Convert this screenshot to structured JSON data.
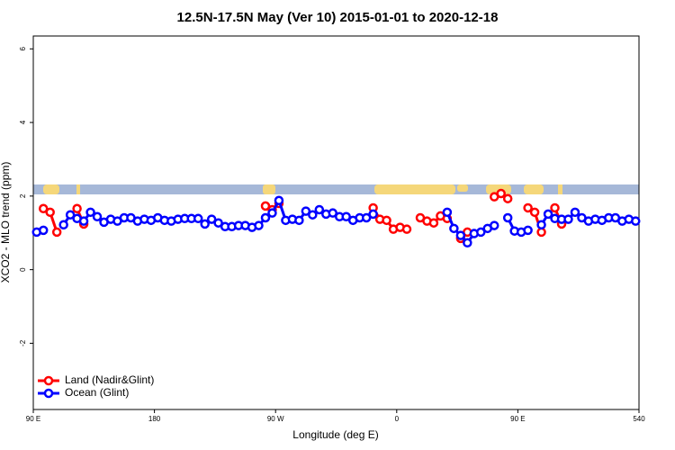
{
  "chart_data": {
    "type": "line",
    "title": "12.5N-17.5N May (Ver 10)   2015-01-01 to 2020-12-18",
    "xlabel": "Longitude (deg E)",
    "ylabel": "XCO2 - MLO trend (ppm)",
    "xlim": [
      90,
      540
    ],
    "xticks": [
      {
        "value": 90,
        "label": "90 E"
      },
      180,
      {
        "value": 270,
        "label": "90 W"
      },
      {
        "value": 360,
        "label": "0"
      },
      {
        "value": 450,
        "label": "90 E"
      },
      540
    ],
    "ylim": [
      -3.8,
      6.35
    ],
    "yticks": [
      -2,
      0,
      2,
      4,
      6
    ],
    "legend": "bottom-left",
    "x": [
      92.5,
      97.5,
      102.5,
      107.5,
      112.5,
      117.5,
      122.5,
      127.5,
      132.5,
      137.5,
      142.5,
      147.5,
      152.5,
      157.5,
      162.5,
      167.5,
      172.5,
      177.5,
      182.5,
      187.5,
      192.5,
      197.5,
      202.5,
      207.5,
      212.5,
      217.5,
      222.5,
      227.5,
      232.5,
      237.5,
      242.5,
      247.5,
      252.5,
      257.5,
      262.5,
      267.5,
      272.5,
      277.5,
      282.5,
      287.5,
      292.5,
      297.5,
      302.5,
      307.5,
      312.5,
      317.5,
      322.5,
      327.5,
      332.5,
      337.5,
      342.5,
      347.5,
      352.5,
      357.5,
      362.5,
      367.5,
      372.5,
      377.5,
      382.5,
      387.5,
      392.5,
      397.5,
      402.5,
      407.5,
      412.5,
      417.5,
      422.5,
      427.5,
      432.5,
      437.5,
      442.5,
      447.5,
      452.5,
      457.5,
      462.5,
      467.5,
      472.5,
      477.5,
      482.5,
      487.5,
      492.5,
      497.5,
      502.5,
      507.5,
      512.5,
      517.5,
      522.5,
      527.5,
      532.5,
      537.5
    ],
    "series": [
      {
        "name": "Land (Nadir&Glint)",
        "color": "#ff0000",
        "values": [
          null,
          1.66,
          1.56,
          1.02,
          null,
          null,
          1.66,
          1.24,
          null,
          null,
          null,
          null,
          null,
          null,
          null,
          null,
          null,
          null,
          null,
          null,
          null,
          null,
          null,
          null,
          null,
          null,
          null,
          null,
          null,
          null,
          null,
          null,
          null,
          null,
          1.73,
          1.63,
          1.8,
          null,
          null,
          null,
          null,
          null,
          null,
          null,
          null,
          null,
          null,
          null,
          null,
          null,
          1.68,
          1.37,
          1.34,
          1.1,
          1.15,
          1.1,
          null,
          1.41,
          1.32,
          1.27,
          1.46,
          1.39,
          null,
          0.85,
          1.02,
          null,
          null,
          null,
          1.98,
          2.07,
          1.93,
          null,
          null,
          1.68,
          1.56,
          1.02,
          null,
          1.68,
          1.24,
          null,
          null,
          null,
          null,
          null,
          null,
          null,
          null,
          null,
          null,
          null
        ]
      },
      {
        "name": "Ocean (Glint)",
        "color": "#0000ff",
        "values": [
          1.02,
          1.07,
          null,
          null,
          1.22,
          1.49,
          1.39,
          1.32,
          1.56,
          1.44,
          1.29,
          1.37,
          1.32,
          1.41,
          1.41,
          1.32,
          1.37,
          1.34,
          1.41,
          1.34,
          1.32,
          1.37,
          1.39,
          1.39,
          1.39,
          1.24,
          1.37,
          1.27,
          1.17,
          1.17,
          1.2,
          1.2,
          1.15,
          1.2,
          1.41,
          1.54,
          1.88,
          1.34,
          1.37,
          1.34,
          1.59,
          1.49,
          1.63,
          1.51,
          1.54,
          1.44,
          1.44,
          1.34,
          1.41,
          1.41,
          1.51,
          null,
          null,
          null,
          null,
          null,
          null,
          null,
          null,
          null,
          null,
          1.56,
          1.12,
          0.93,
          0.73,
          0.98,
          1.02,
          1.12,
          1.2,
          null,
          1.41,
          1.05,
          1.02,
          1.07,
          null,
          1.22,
          1.51,
          1.39,
          1.37,
          1.37,
          1.56,
          1.41,
          1.32,
          1.37,
          1.34,
          1.41,
          1.41,
          1.32,
          1.37,
          1.32
        ]
      }
    ]
  }
}
